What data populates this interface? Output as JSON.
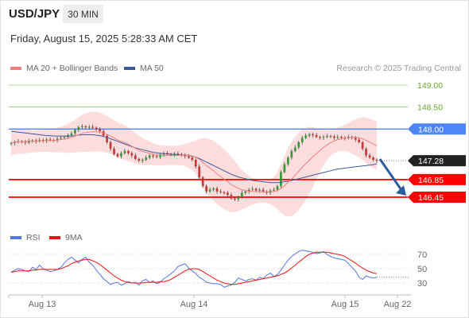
{
  "header": {
    "symbol": "USD/JPY",
    "timeframe": "30 MIN",
    "timestamp": "Friday, August 15, 2025 5:28:33 AM CET"
  },
  "legend": {
    "ma20": "MA 20 + Bollinger Bands",
    "ma50": "MA 50",
    "credit": "Research © 2025 Trading Central"
  },
  "rsi_legend": {
    "rsi": "RSI",
    "ma": "9MA"
  },
  "colors": {
    "ma20": "#f08080",
    "ma50": "#3d5a99",
    "bands": "#fcd7d7",
    "pivot": "#4f86f7",
    "support": "#ff0000",
    "resistance": "#66aa33",
    "arrow": "#2b5d9e",
    "candle_up": "#339933",
    "candle_down": "#cc3333",
    "rsi": "#5577dd",
    "rsi_ma": "#ee1111"
  },
  "icons": {
    "arrow": "down-right-arrow-icon"
  },
  "chart_data": {
    "type": "line",
    "title": "USD/JPY",
    "ylim": [
      146.3,
      149.1
    ],
    "x_ticks": [
      "Aug 13",
      "Aug 14",
      "Aug 15",
      "Aug 22"
    ],
    "levels": [
      {
        "label": "149.00",
        "value": 149.0,
        "kind": "resistance"
      },
      {
        "label": "148.50",
        "value": 148.5,
        "kind": "resistance"
      },
      {
        "label": "148.00",
        "value": 148.0,
        "kind": "pivot"
      },
      {
        "label": "147.28",
        "value": 147.28,
        "kind": "last"
      },
      {
        "label": "146.85",
        "value": 146.85,
        "kind": "support"
      },
      {
        "label": "146.45",
        "value": 146.45,
        "kind": "support"
      }
    ],
    "price": [
      147.68,
      147.7,
      147.72,
      147.71,
      147.69,
      147.73,
      147.74,
      147.72,
      147.75,
      147.73,
      147.76,
      147.75,
      147.74,
      147.78,
      147.8,
      147.82,
      147.86,
      147.9,
      147.98,
      148.04,
      148.06,
      148.04,
      148.05,
      148.03,
      148.0,
      147.95,
      147.85,
      147.7,
      147.55,
      147.43,
      147.38,
      147.45,
      147.5,
      147.45,
      147.4,
      147.32,
      147.28,
      147.3,
      147.35,
      147.4,
      147.38,
      147.36,
      147.42,
      147.45,
      147.43,
      147.42,
      147.44,
      147.43,
      147.41,
      147.38,
      147.35,
      147.3,
      147.15,
      146.9,
      146.7,
      146.58,
      146.62,
      146.65,
      146.58,
      146.56,
      146.55,
      146.5,
      146.42,
      146.4,
      146.45,
      146.55,
      146.58,
      146.62,
      146.64,
      146.6,
      146.62,
      146.58,
      146.55,
      146.6,
      146.62,
      146.7,
      147.02,
      147.2,
      147.35,
      147.5,
      147.58,
      147.7,
      147.8,
      147.85,
      147.88,
      147.86,
      147.82,
      147.8,
      147.82,
      147.84,
      147.83,
      147.8,
      147.82,
      147.8,
      147.79,
      147.82,
      147.8,
      147.76,
      147.7,
      147.55,
      147.4,
      147.35,
      147.3,
      147.28
    ],
    "ma20": [
      147.68,
      147.7,
      147.71,
      147.71,
      147.71,
      147.72,
      147.72,
      147.72,
      147.73,
      147.73,
      147.74,
      147.74,
      147.74,
      147.75,
      147.76,
      147.77,
      147.79,
      147.81,
      147.84,
      147.87,
      147.9,
      147.92,
      147.93,
      147.94,
      147.94,
      147.93,
      147.91,
      147.88,
      147.84,
      147.8,
      147.75,
      147.72,
      147.69,
      147.65,
      147.61,
      147.56,
      147.52,
      147.49,
      147.47,
      147.45,
      147.43,
      147.41,
      147.4,
      147.4,
      147.4,
      147.4,
      147.4,
      147.4,
      147.41,
      147.41,
      147.4,
      147.39,
      147.36,
      147.31,
      147.24,
      147.17,
      147.11,
      147.05,
      146.98,
      146.92,
      146.86,
      146.8,
      146.74,
      146.69,
      146.65,
      146.62,
      146.6,
      146.59,
      146.58,
      146.57,
      146.57,
      146.57,
      146.57,
      146.57,
      146.58,
      146.6,
      146.65,
      146.71,
      146.79,
      146.87,
      146.95,
      147.04,
      147.13,
      147.21,
      147.29,
      147.37,
      147.44,
      147.51,
      147.58,
      147.64,
      147.69,
      147.73,
      147.76,
      147.78,
      147.8,
      147.81,
      147.81,
      147.81,
      147.8,
      147.78,
      147.74,
      147.7,
      147.66,
      147.62
    ],
    "ma50": [
      147.95,
      147.94,
      147.93,
      147.92,
      147.91,
      147.9,
      147.89,
      147.88,
      147.87,
      147.86,
      147.85,
      147.85,
      147.84,
      147.84,
      147.84,
      147.84,
      147.84,
      147.84,
      147.85,
      147.86,
      147.87,
      147.87,
      147.87,
      147.87,
      147.86,
      147.85,
      147.83,
      147.81,
      147.78,
      147.75,
      147.72,
      147.69,
      147.66,
      147.63,
      147.6,
      147.57,
      147.55,
      147.53,
      147.51,
      147.49,
      147.47,
      147.46,
      147.45,
      147.44,
      147.43,
      147.43,
      147.42,
      147.42,
      147.41,
      147.41,
      147.4,
      147.38,
      147.36,
      147.33,
      147.29,
      147.25,
      147.21,
      147.17,
      147.13,
      147.09,
      147.05,
      147.01,
      146.97,
      146.94,
      146.91,
      146.89,
      146.87,
      146.85,
      146.83,
      146.82,
      146.81,
      146.8,
      146.79,
      146.78,
      146.78,
      146.78,
      146.79,
      146.8,
      146.81,
      146.83,
      146.85,
      146.87,
      146.89,
      146.91,
      146.93,
      146.95,
      146.97,
      146.99,
      147.01,
      147.03,
      147.05,
      147.07,
      147.09,
      147.1,
      147.11,
      147.12,
      147.13,
      147.14,
      147.15,
      147.16,
      147.17,
      147.18,
      147.19,
      147.21
    ],
    "band_width": [
      0.28,
      0.28,
      0.27,
      0.27,
      0.26,
      0.26,
      0.25,
      0.25,
      0.25,
      0.25,
      0.26,
      0.26,
      0.27,
      0.28,
      0.29,
      0.31,
      0.33,
      0.35,
      0.37,
      0.4,
      0.42,
      0.44,
      0.45,
      0.45,
      0.45,
      0.44,
      0.43,
      0.42,
      0.41,
      0.4,
      0.4,
      0.4,
      0.39,
      0.38,
      0.37,
      0.35,
      0.33,
      0.31,
      0.29,
      0.27,
      0.25,
      0.24,
      0.23,
      0.22,
      0.22,
      0.22,
      0.22,
      0.22,
      0.23,
      0.25,
      0.28,
      0.32,
      0.38,
      0.46,
      0.55,
      0.62,
      0.66,
      0.68,
      0.69,
      0.69,
      0.68,
      0.66,
      0.63,
      0.58,
      0.52,
      0.45,
      0.4,
      0.35,
      0.3,
      0.27,
      0.25,
      0.24,
      0.25,
      0.28,
      0.33,
      0.42,
      0.55,
      0.68,
      0.78,
      0.85,
      0.88,
      0.88,
      0.86,
      0.82,
      0.76,
      0.68,
      0.58,
      0.48,
      0.4,
      0.34,
      0.3,
      0.28,
      0.27,
      0.28,
      0.3,
      0.33,
      0.37,
      0.41,
      0.45,
      0.49,
      0.52,
      0.54,
      0.55,
      0.55
    ],
    "rsi": {
      "ylim": [
        20,
        80
      ],
      "ticks": [
        "70",
        "50",
        "30"
      ],
      "values": [
        45,
        48,
        50,
        49,
        47,
        46,
        52,
        49,
        55,
        50,
        48,
        46,
        47,
        49,
        52,
        58,
        63,
        66,
        62,
        58,
        63,
        66,
        59,
        55,
        48,
        42,
        36,
        32,
        28,
        30,
        31,
        27,
        29,
        32,
        30,
        31,
        27,
        33,
        35,
        31,
        33,
        29,
        31,
        36,
        39,
        43,
        47,
        53,
        55,
        57,
        51,
        47,
        43,
        38,
        35,
        31,
        30,
        29,
        29,
        28,
        24,
        26,
        27,
        31,
        37,
        35,
        33,
        35,
        36,
        34,
        38,
        36,
        41,
        44,
        39,
        42,
        48,
        55,
        62,
        67,
        71,
        74,
        76,
        75,
        74,
        73,
        71,
        72,
        74,
        70,
        67,
        65,
        64,
        63,
        62,
        57,
        52,
        47,
        38,
        35,
        40,
        38,
        37,
        38
      ],
      "ma": [
        45,
        46,
        47,
        47,
        47,
        47,
        48,
        48,
        49,
        49,
        49,
        49,
        49,
        49,
        50,
        52,
        54,
        57,
        59,
        61,
        62,
        63,
        63,
        61,
        59,
        56,
        52,
        48,
        44,
        40,
        37,
        34,
        32,
        31,
        30,
        30,
        30,
        30,
        31,
        31,
        31,
        31,
        32,
        32,
        33,
        35,
        38,
        41,
        44,
        47,
        49,
        50,
        50,
        49,
        46,
        43,
        40,
        37,
        34,
        32,
        30,
        29,
        28,
        28,
        29,
        30,
        31,
        32,
        33,
        34,
        35,
        36,
        37,
        38,
        39,
        40,
        42,
        44,
        47,
        51,
        55,
        59,
        63,
        67,
        70,
        72,
        73,
        73,
        73,
        73,
        72,
        71,
        70,
        69,
        67,
        64,
        61,
        58,
        54,
        51,
        48,
        46,
        44,
        43
      ]
    }
  }
}
